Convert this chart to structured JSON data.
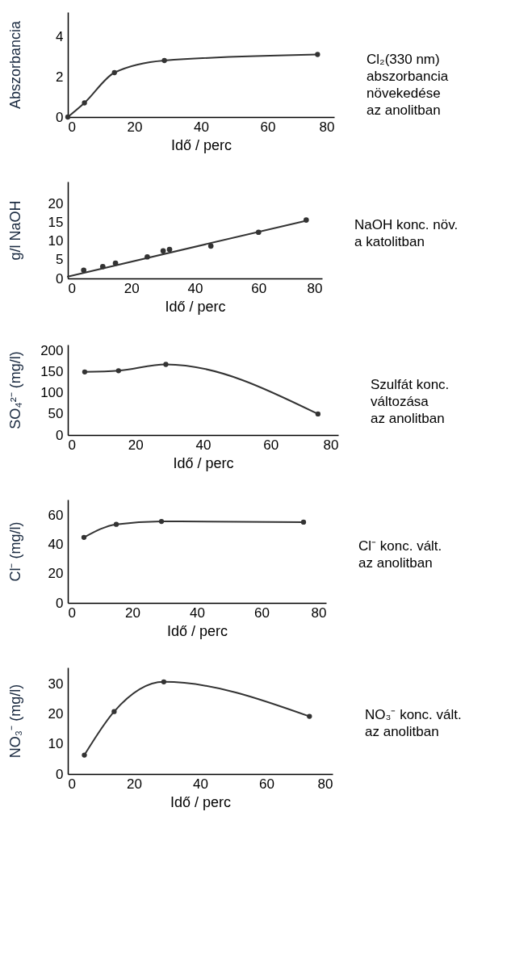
{
  "chart_data": [
    {
      "type": "line",
      "xlabel": "Idő / perc",
      "ylabel": "Abszorbancia",
      "annotations": [
        "Cl₂(330 nm)\nabszorbancia\nnövekedése\naz anolitban"
      ],
      "x": [
        0,
        5,
        14,
        29,
        75
      ],
      "values": [
        0,
        0.7,
        2.2,
        2.8,
        3.1
      ],
      "color": "#333333",
      "marker": "circle",
      "xlim": [
        0,
        80
      ],
      "xticks": [
        0,
        20,
        40,
        60,
        80
      ],
      "ylim": [
        0,
        5.2
      ],
      "yticks": [
        0,
        2,
        4
      ],
      "grid": false
    },
    {
      "type": "scatter",
      "xlabel": "Idő / perc",
      "ylabel": "g/l NaOH",
      "annotations": [
        "NaOH konc. növ.\na katolitban"
      ],
      "series": [
        {
          "type": "scatter",
          "color": "#333333",
          "marker": "circle",
          "x": [
            5,
            11,
            15,
            25,
            30,
            32,
            45,
            60,
            75
          ],
          "values": [
            2.2,
            3.2,
            4.1,
            5.8,
            7.4,
            7.8,
            8.7,
            12.4,
            15.7
          ]
        },
        {
          "type": "line",
          "color": "#333333",
          "marker": "none",
          "x": [
            0,
            75
          ],
          "values": [
            0.5,
            15.5
          ]
        }
      ],
      "xlim": [
        0,
        80
      ],
      "xticks": [
        0,
        20,
        40,
        60,
        80
      ],
      "ylim": [
        0,
        26
      ],
      "yticks": [
        0,
        5,
        10,
        15,
        20
      ],
      "grid": false
    },
    {
      "type": "line",
      "xlabel": "Idő / perc",
      "ylabel": "SO₄²⁻ (mg/l)",
      "annotations": [
        "Szulfát konc.\nváltozása\naz anolitban"
      ],
      "x": [
        5,
        15,
        29,
        74
      ],
      "values": [
        150,
        153,
        168,
        50
      ],
      "color": "#333333",
      "marker": "circle",
      "xlim": [
        0,
        80
      ],
      "xticks": [
        0,
        20,
        40,
        60,
        80
      ],
      "ylim": [
        0,
        215
      ],
      "yticks": [
        0,
        50,
        100,
        150,
        200
      ],
      "grid": false
    },
    {
      "type": "line",
      "xlabel": "Idő / perc",
      "ylabel": "Cl⁻ (mg/l)",
      "annotations": [
        "Cl⁻ konc. vált.\naz anolitban"
      ],
      "x": [
        5,
        15,
        29,
        73
      ],
      "values": [
        45,
        54,
        56,
        55.5
      ],
      "color": "#333333",
      "marker": "circle",
      "xlim": [
        0,
        80
      ],
      "xticks": [
        0,
        20,
        40,
        60,
        80
      ],
      "ylim": [
        0,
        71
      ],
      "yticks": [
        0,
        20,
        40,
        60
      ],
      "grid": false
    },
    {
      "type": "line",
      "xlabel": "Idő / perc",
      "ylabel": "NO₃⁻ (mg/l)",
      "annotations": [
        "NO₃⁻ konc. vált.\naz anolitban"
      ],
      "x": [
        5,
        14,
        29,
        73
      ],
      "values": [
        6.3,
        20.8,
        30.7,
        19.2
      ],
      "color": "#333333",
      "marker": "circle",
      "xlim": [
        0,
        80
      ],
      "xticks": [
        0,
        20,
        40,
        60,
        80
      ],
      "ylim": [
        0,
        35.5
      ],
      "yticks": [
        0,
        10,
        20,
        30
      ],
      "grid": false
    }
  ]
}
